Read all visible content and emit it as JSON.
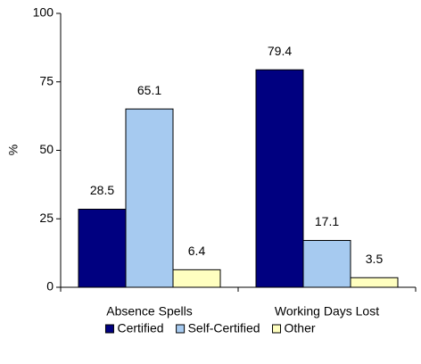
{
  "chart_data": {
    "type": "bar",
    "y_label": "%",
    "categories": [
      "Absence Spells",
      "Working Days Lost"
    ],
    "series": [
      {
        "name": "Certified",
        "color": "#000080",
        "values": [
          28.5,
          79.4
        ]
      },
      {
        "name": "Self-Certified",
        "color": "#a6caf0",
        "values": [
          65.1,
          17.1
        ]
      },
      {
        "name": "Other",
        "color": "#ffffc0",
        "values": [
          6.4,
          3.5
        ]
      }
    ],
    "ylim": [
      0,
      100
    ],
    "yticks": [
      0,
      25,
      50,
      75,
      100
    ],
    "grid": false,
    "legend": "bottom"
  }
}
